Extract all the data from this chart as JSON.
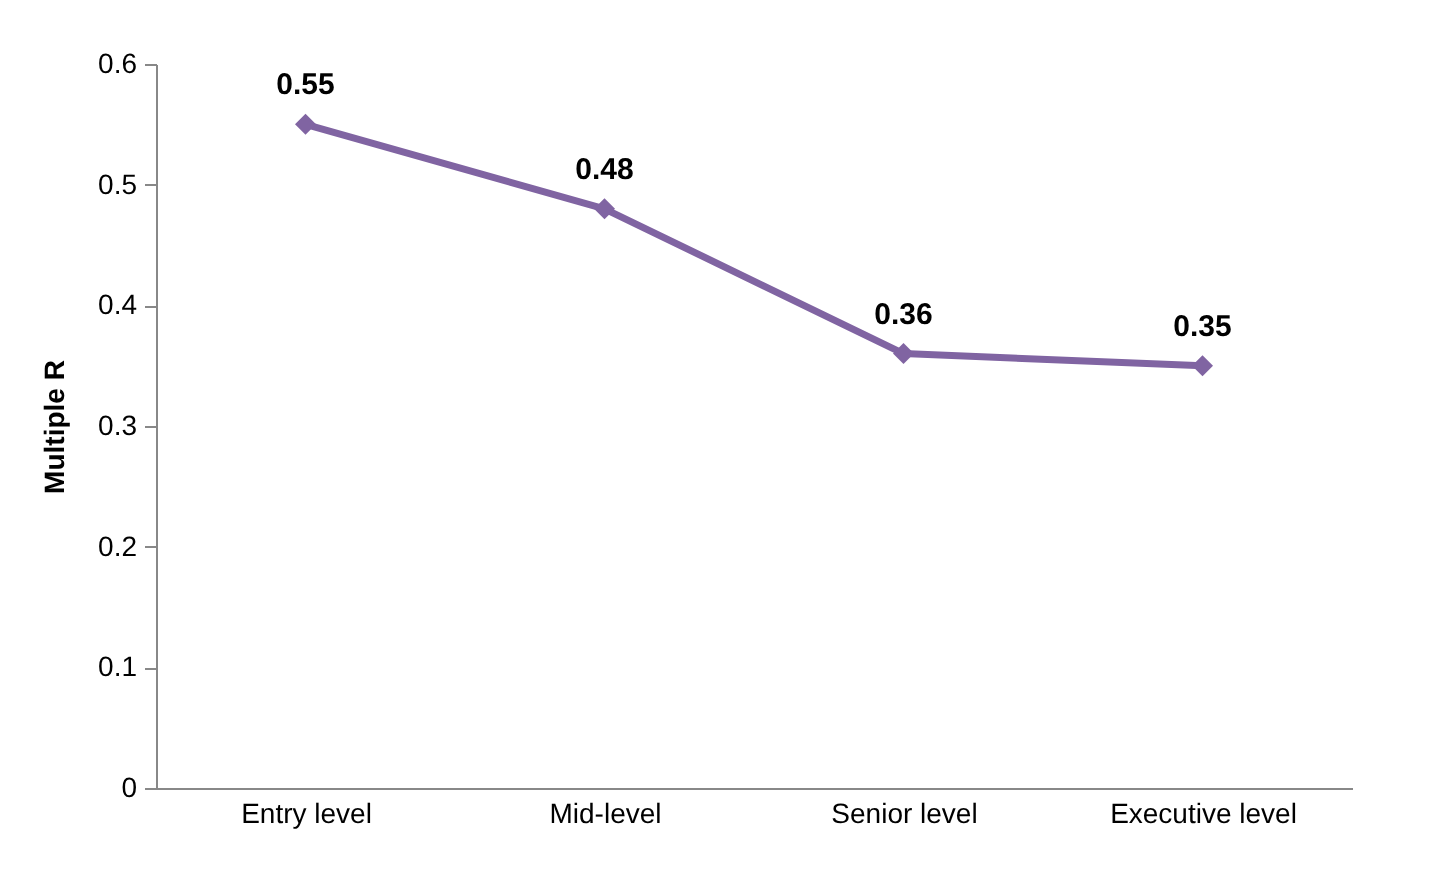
{
  "chart_data": {
    "type": "line",
    "ylabel": "Multiple R",
    "categories": [
      "Entry level",
      "Mid-level",
      "Senior level",
      "Executive level"
    ],
    "series": [
      {
        "color": "#8064a2",
        "values": [
          0.55,
          0.48,
          0.36,
          0.35
        ]
      }
    ],
    "ylim": [
      0,
      0.6
    ],
    "yticks": [
      0,
      0.1,
      0.2,
      0.3,
      0.4,
      0.5,
      0.6
    ],
    "grid": false,
    "legend": false,
    "marker": "diamond",
    "line_style": "solid",
    "data_labels": true
  }
}
